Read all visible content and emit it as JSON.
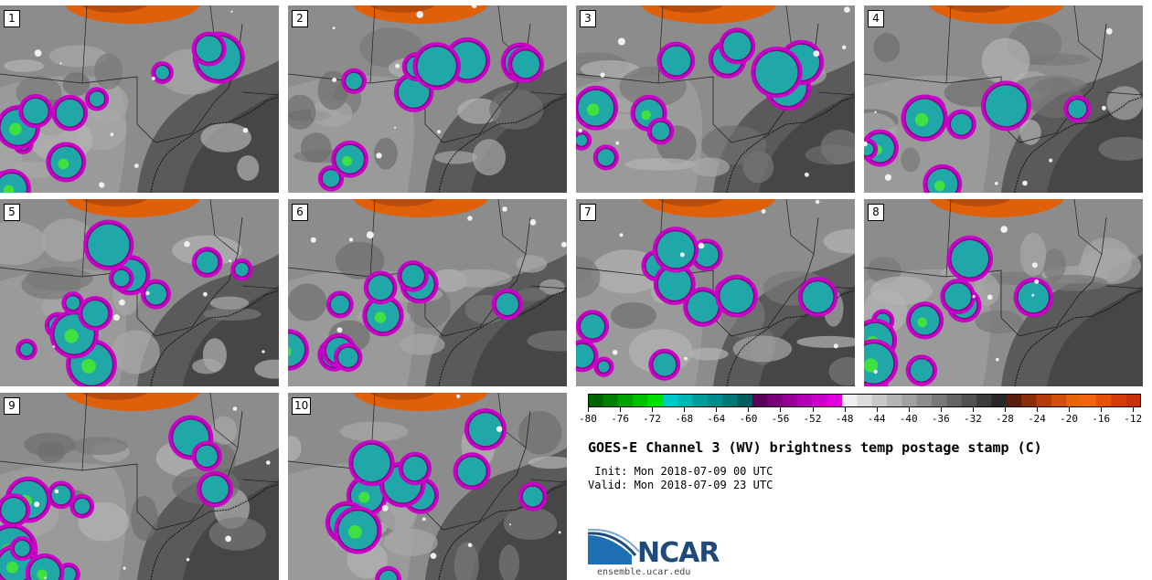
{
  "panels": [
    {
      "label": "1"
    },
    {
      "label": "2"
    },
    {
      "label": "3"
    },
    {
      "label": "4"
    },
    {
      "label": "5"
    },
    {
      "label": "6"
    },
    {
      "label": "7"
    },
    {
      "label": "8"
    },
    {
      "label": "9"
    },
    {
      "label": "10"
    }
  ],
  "colorbar": {
    "ticks": [
      "-80",
      "-76",
      "-72",
      "-68",
      "-64",
      "-60",
      "-56",
      "-52",
      "-48",
      "-44",
      "-40",
      "-36",
      "-32",
      "-28",
      "-24",
      "-20",
      "-16",
      "-12"
    ],
    "min": -80,
    "max": -11,
    "colors": [
      "#006400",
      "#008000",
      "#00a000",
      "#00c000",
      "#00e000",
      "#00c8c8",
      "#00b4b4",
      "#009c9c",
      "#008c8c",
      "#007878",
      "#006060",
      "#5a005a",
      "#780078",
      "#960096",
      "#b400b4",
      "#c800c8",
      "#e000e0",
      "#f0f0f0",
      "#dcdcdc",
      "#c8c8c8",
      "#b4b4b4",
      "#a0a0a0",
      "#8c8c8c",
      "#787878",
      "#646464",
      "#505050",
      "#3c3c3c",
      "#282828",
      "#5a1e0a",
      "#8c2d0a",
      "#b43c0a",
      "#d2500a",
      "#e6640a",
      "#f06414",
      "#e6500a",
      "#d23c0a",
      "#c8320a"
    ]
  },
  "title": "GOES-E Channel 3 (WV) brightness temp postage stamp (C)",
  "init": " Init: Mon 2018-07-09 00 UTC",
  "valid": "Valid: Mon 2018-07-09 23 UTC",
  "logo": {
    "name": "NCAR",
    "url": "ensemble.ucar.edu",
    "color": "#1f4a7a"
  }
}
